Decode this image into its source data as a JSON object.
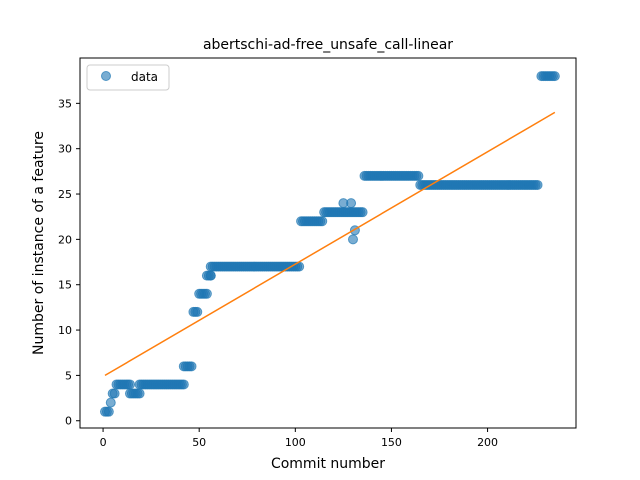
{
  "chart_data": {
    "type": "scatter",
    "title": "abertschi-ad-free_unsafe_call-linear",
    "xlabel": "Commit number",
    "ylabel": "Number of instance of a feature",
    "xlim": [
      -12,
      246
    ],
    "ylim": [
      -0.8,
      40
    ],
    "xticks": [
      0,
      50,
      100,
      150,
      200
    ],
    "yticks": [
      0,
      5,
      10,
      15,
      20,
      25,
      30,
      35
    ],
    "legend": {
      "position": "top-left",
      "entries": [
        "data"
      ]
    },
    "colors": {
      "points": "#1f77b4",
      "fit": "#ff7f0e"
    },
    "series": [
      {
        "name": "data",
        "kind": "scatter",
        "segments": [
          {
            "x_start": 1,
            "x_end": 3,
            "y": 1
          },
          {
            "x_start": 4,
            "x_end": 4,
            "y": 2
          },
          {
            "x_start": 5,
            "x_end": 6,
            "y": 3
          },
          {
            "x_start": 7,
            "x_end": 14,
            "y": 4
          },
          {
            "x_start": 14,
            "x_end": 19,
            "y": 3
          },
          {
            "x_start": 19,
            "x_end": 42,
            "y": 4
          },
          {
            "x_start": 42,
            "x_end": 46,
            "y": 6
          },
          {
            "x_start": 47,
            "x_end": 49,
            "y": 12
          },
          {
            "x_start": 50,
            "x_end": 54,
            "y": 14
          },
          {
            "x_start": 54,
            "x_end": 56,
            "y": 16
          },
          {
            "x_start": 56,
            "x_end": 102,
            "y": 17
          },
          {
            "x_start": 103,
            "x_end": 114,
            "y": 22
          },
          {
            "x_start": 115,
            "x_end": 128,
            "y": 23
          },
          {
            "x_start": 129,
            "x_end": 135,
            "y": 23
          },
          {
            "x_start": 136,
            "x_end": 164,
            "y": 27
          },
          {
            "x_start": 165,
            "x_end": 226,
            "y": 26
          },
          {
            "x_start": 228,
            "x_end": 235,
            "y": 38
          }
        ],
        "outliers": [
          {
            "x": 125,
            "y": 24
          },
          {
            "x": 129,
            "y": 24
          },
          {
            "x": 130,
            "y": 20
          },
          {
            "x": 131,
            "y": 21
          },
          {
            "x": 56,
            "y": 16
          }
        ]
      },
      {
        "name": "fit",
        "kind": "line",
        "x": [
          1,
          235
        ],
        "y": [
          5,
          34
        ]
      }
    ]
  }
}
